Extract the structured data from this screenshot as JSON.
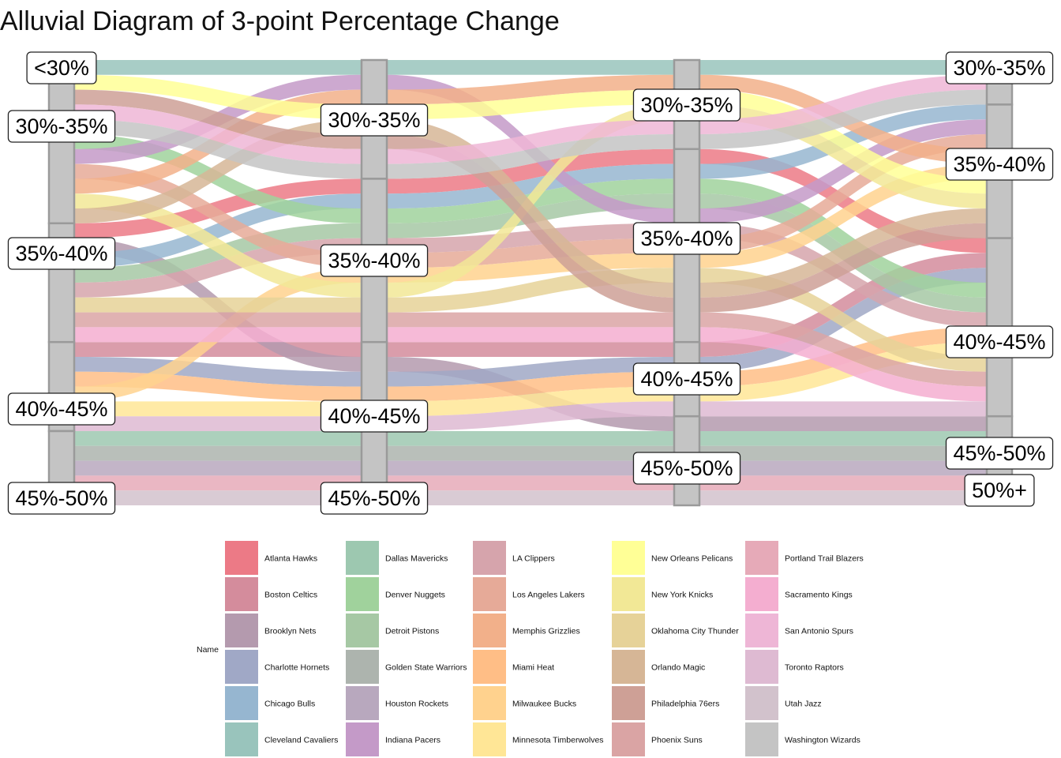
{
  "chart_data": {
    "type": "alluvial",
    "title": "Alluvial Diagram of 3-point Percentage Change",
    "legend_title": "Name",
    "legend_position": "bottom",
    "axes": [
      {
        "strata": [
          "<30%",
          "30%-35%",
          "35%-40%",
          "40%-45%",
          "45%-50%"
        ]
      },
      {
        "strata": [
          "30%-35%",
          "35%-40%",
          "40%-45%",
          "45%-50%"
        ]
      },
      {
        "strata": [
          "30%-35%",
          "35%-40%",
          "40%-45%",
          "45%-50%"
        ]
      },
      {
        "strata": [
          "30%-35%",
          "35%-40%",
          "40%-45%",
          "45%-50%",
          "50%+"
        ]
      }
    ],
    "teams": [
      {
        "name": "Atlanta Hawks",
        "color": "#EC7A86",
        "path": [
          "35%-40%",
          "35%-40%",
          "35%-40%",
          "40%-45%"
        ]
      },
      {
        "name": "Boston Celtics",
        "color": "#D48C9C",
        "path": [
          "40%-45%",
          "40%-45%",
          "40%-45%",
          "40%-45%"
        ]
      },
      {
        "name": "Brooklyn Nets",
        "color": "#B49AAE",
        "path": [
          "35%-40%",
          "40%-45%",
          "45%-50%",
          "45%-50%"
        ]
      },
      {
        "name": "Charlotte Hornets",
        "color": "#A0A8C6",
        "path": [
          "40%-45%",
          "40%-45%",
          "40%-45%",
          "40%-45%"
        ]
      },
      {
        "name": "Chicago Bulls",
        "color": "#96B6D0",
        "path": [
          "35%-40%",
          "35%-40%",
          "35%-40%",
          "35%-40%"
        ]
      },
      {
        "name": "Cleveland Cavaliers",
        "color": "#99C4BC",
        "path": [
          "<30%",
          "30%-35%",
          "30%-35%",
          "30%-35%"
        ]
      },
      {
        "name": "Dallas Mavericks",
        "color": "#9DC8B0",
        "path": [
          "45%-50%",
          "45%-50%",
          "45%-50%",
          "45%-50%"
        ]
      },
      {
        "name": "Denver Nuggets",
        "color": "#A0D29C",
        "path": [
          "30%-35%",
          "35%-40%",
          "35%-40%",
          "40%-45%"
        ]
      },
      {
        "name": "Detroit Pistons",
        "color": "#A6C8A4",
        "path": [
          "35%-40%",
          "35%-40%",
          "35%-40%",
          "40%-45%"
        ]
      },
      {
        "name": "Golden State Warriors",
        "color": "#ADB4AE",
        "path": [
          "45%-50%",
          "45%-50%",
          "45%-50%",
          "45%-50%"
        ]
      },
      {
        "name": "Houston Rockets",
        "color": "#B8A8BE",
        "path": [
          "45%-50%",
          "45%-50%",
          "45%-50%",
          "50%+"
        ]
      },
      {
        "name": "Indiana Pacers",
        "color": "#C49AC8",
        "path": [
          "30%-35%",
          "30%-35%",
          "35%-40%",
          "35%-40%"
        ]
      },
      {
        "name": "LA Clippers",
        "color": "#D6A4AC",
        "path": [
          "35%-40%",
          "35%-40%",
          "35%-40%",
          "40%-45%"
        ]
      },
      {
        "name": "Los Angeles Lakers",
        "color": "#E6AA98",
        "path": [
          "30%-35%",
          "35%-40%",
          "35%-40%",
          "35%-40%"
        ]
      },
      {
        "name": "Memphis Grizzlies",
        "color": "#F2B08A",
        "path": [
          "30%-35%",
          "30%-35%",
          "30%-35%",
          "35%-40%"
        ]
      },
      {
        "name": "Miami Heat",
        "color": "#FFBE86",
        "path": [
          "40%-45%",
          "40%-45%",
          "40%-45%",
          "40%-45%"
        ]
      },
      {
        "name": "Milwaukee Bucks",
        "color": "#FFD28E",
        "path": [
          "40%-45%",
          "35%-40%",
          "35%-40%",
          "35%-40%"
        ]
      },
      {
        "name": "Minnesota Timberwolves",
        "color": "#FFE696",
        "path": [
          "40%-45%",
          "40%-45%",
          "40%-45%",
          "40%-45%"
        ]
      },
      {
        "name": "New Orleans Pelicans",
        "color": "#FFFF96",
        "path": [
          "<30%",
          "30%-35%",
          "30%-35%",
          "35%-40%"
        ]
      },
      {
        "name": "New York Knicks",
        "color": "#F2E896",
        "path": [
          "30%-35%",
          "35%-40%",
          "30%-35%",
          "35%-40%"
        ]
      },
      {
        "name": "Oklahoma City Thunder",
        "color": "#E6D298",
        "path": [
          "35%-40%",
          "35%-40%",
          "35%-40%",
          "40%-45%"
        ]
      },
      {
        "name": "Orlando Magic",
        "color": "#D6B696",
        "path": [
          "30%-35%",
          "30%-35%",
          "35%-40%",
          "35%-40%"
        ]
      },
      {
        "name": "Philadelphia 76ers",
        "color": "#CEA096",
        "path": [
          "<30%",
          "30%-35%",
          "35%-40%",
          "35%-40%"
        ]
      },
      {
        "name": "Phoenix Suns",
        "color": "#DAA4A4",
        "path": [
          "35%-40%",
          "35%-40%",
          "35%-40%",
          "40%-45%"
        ]
      },
      {
        "name": "Portland Trail Blazers",
        "color": "#E6AAB8",
        "path": [
          "45%-50%",
          "45%-50%",
          "45%-50%",
          "50%+"
        ]
      },
      {
        "name": "Sacramento Kings",
        "color": "#F4AED0",
        "path": [
          "35%-40%",
          "35%-40%",
          "35%-40%",
          "40%-45%"
        ]
      },
      {
        "name": "San Antonio Spurs",
        "color": "#EEB6D6",
        "path": [
          "<30%",
          "30%-35%",
          "30%-35%",
          "30%-35%"
        ]
      },
      {
        "name": "Toronto Raptors",
        "color": "#DEBAD2",
        "path": [
          "40%-45%",
          "40%-45%",
          "40%-45%",
          "40%-45%"
        ]
      },
      {
        "name": "Utah Jazz",
        "color": "#D2C2CC",
        "path": [
          "45%-50%",
          "45%-50%",
          "45%-50%",
          "50%+"
        ]
      },
      {
        "name": "Washington Wizards",
        "color": "#C4C4C4",
        "path": [
          "<30%",
          "30%-35%",
          "30%-35%",
          "30%-35%"
        ]
      }
    ]
  }
}
